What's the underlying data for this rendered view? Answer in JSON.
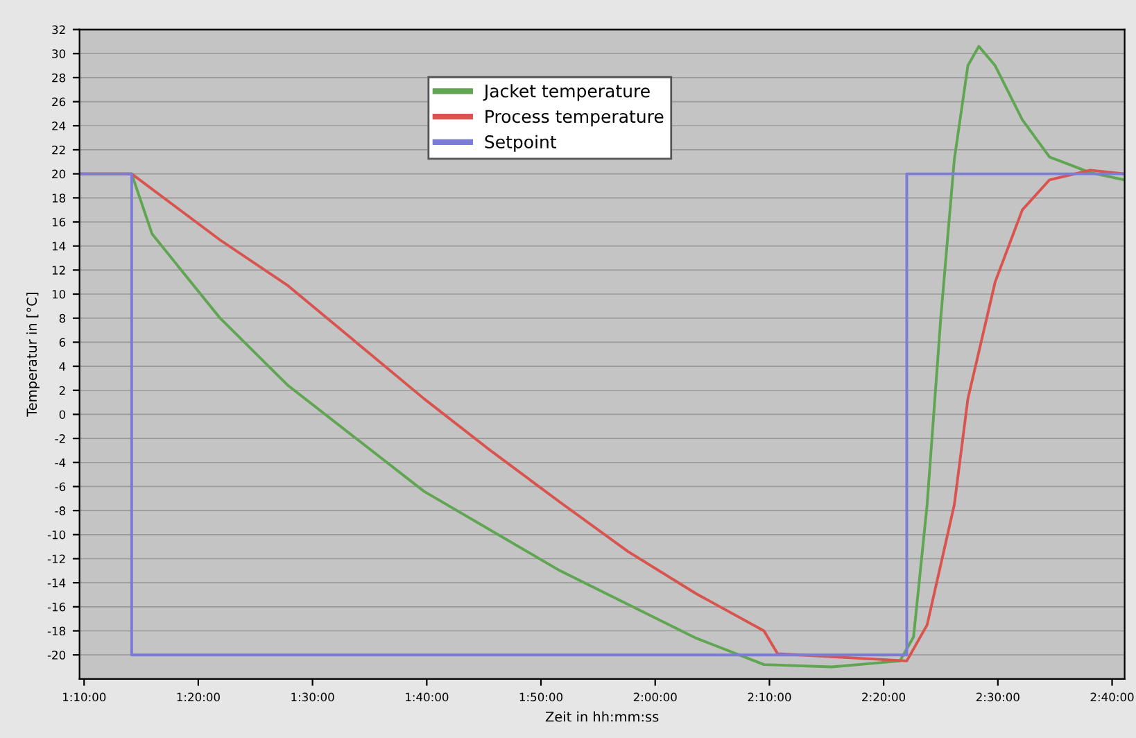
{
  "chart_data": {
    "type": "line",
    "xlabel": "Zeit in hh:mm:ss",
    "ylabel": "Temperatur in [°C]",
    "xlim": [
      1.16,
      2.685
    ],
    "ylim": [
      -22,
      32
    ],
    "xticks": [
      {
        "value": 1.1667,
        "label": "1:10:00"
      },
      {
        "value": 1.3333,
        "label": "1:20:00"
      },
      {
        "value": 1.5,
        "label": "1:30:00"
      },
      {
        "value": 1.6667,
        "label": "1:40:00"
      },
      {
        "value": 1.8333,
        "label": "1:50:00"
      },
      {
        "value": 2.0,
        "label": "2:00:00"
      },
      {
        "value": 2.1667,
        "label": "2:10:00"
      },
      {
        "value": 2.3333,
        "label": "2:20:00"
      },
      {
        "value": 2.5,
        "label": "2:30:00"
      },
      {
        "value": 2.6667,
        "label": "2:40:00"
      }
    ],
    "yticks": [
      -20,
      -18,
      -16,
      -14,
      -12,
      -10,
      -8,
      -6,
      -4,
      -2,
      0,
      2,
      4,
      6,
      8,
      10,
      12,
      14,
      16,
      18,
      20,
      22,
      24,
      26,
      28,
      30,
      32
    ],
    "grid": "y",
    "legend": "top",
    "marker": "none",
    "line_style": "solid",
    "series": [
      {
        "name": "Jacket temperature",
        "color": "#5fa552",
        "x": [
          1.1627,
          1.2361,
          1.2659,
          1.3651,
          1.4643,
          1.6627,
          1.8611,
          2.0595,
          2.1587,
          2.2579,
          2.3571,
          2.377,
          2.3968,
          2.4167,
          2.4365,
          2.4563,
          2.4722,
          2.496,
          2.5357,
          2.5754,
          2.6349,
          2.6845
        ],
        "values": [
          20,
          20,
          15,
          8,
          2.4,
          -6.4,
          -13,
          -18.6,
          -20.8,
          -21,
          -20.5,
          -18.5,
          -7.5,
          8,
          21.2,
          29,
          30.6,
          29,
          24.5,
          21.4,
          20.1,
          19.5
        ]
      },
      {
        "name": "Process temperature",
        "color": "#d9534f",
        "x": [
          1.1627,
          1.2361,
          1.3651,
          1.4643,
          1.5635,
          1.6627,
          1.7619,
          1.8611,
          1.9603,
          2.0595,
          2.1587,
          2.1786,
          2.3671,
          2.3968,
          2.4365,
          2.4563,
          2.496,
          2.5357,
          2.5754,
          2.6349,
          2.6845
        ],
        "values": [
          20,
          20,
          14.5,
          10.7,
          6,
          1.3,
          -3.1,
          -7.3,
          -11.4,
          -14.9,
          -18,
          -19.9,
          -20.5,
          -17.5,
          -7.5,
          1.3,
          11,
          17,
          19.5,
          20.3,
          20
        ]
      },
      {
        "name": "Setpoint",
        "color": "#7b7bd8",
        "x": [
          1.1627,
          1.2361,
          1.2361,
          2.3671,
          2.3671,
          2.6845
        ],
        "values": [
          20,
          20,
          -20,
          -20,
          20,
          20
        ]
      }
    ]
  }
}
